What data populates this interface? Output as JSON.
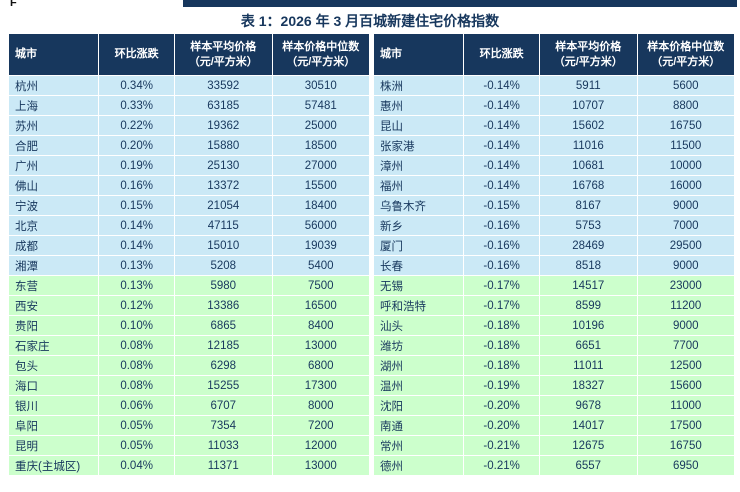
{
  "page": {
    "top_left_text": "F",
    "title": "表 1：2026 年 3 月百城新建住宅价格指数"
  },
  "colors": {
    "header_bg": "#17375D",
    "header_text": "#FFFFFF",
    "cell_text": "#17375D",
    "title_text": "#17375D",
    "top_bar": "#17375D",
    "band_blue": "#CBE9F6",
    "band_green": "#CCFFCC"
  },
  "chart_data": {
    "type": "table",
    "title": "表 1：2026 年 3 月百城新建住宅价格指数",
    "headers": [
      {
        "label": "城市",
        "unit": ""
      },
      {
        "label": "环比涨跌",
        "unit": ""
      },
      {
        "label": "样本平均价格",
        "unit": "（元/平方米）"
      },
      {
        "label": "样本价格中位数",
        "unit": "（元/平方米）"
      }
    ],
    "band_colors": {
      "blue": "#CBE9F6",
      "green": "#CCFFCC"
    },
    "left_rows": [
      {
        "city": "杭州",
        "change": "0.34%",
        "avg": "33592",
        "median": "30510",
        "band": "blue"
      },
      {
        "city": "上海",
        "change": "0.33%",
        "avg": "63185",
        "median": "57481",
        "band": "blue"
      },
      {
        "city": "苏州",
        "change": "0.22%",
        "avg": "19362",
        "median": "25000",
        "band": "blue"
      },
      {
        "city": "合肥",
        "change": "0.20%",
        "avg": "15880",
        "median": "18500",
        "band": "blue"
      },
      {
        "city": "广州",
        "change": "0.19%",
        "avg": "25130",
        "median": "27000",
        "band": "blue"
      },
      {
        "city": "佛山",
        "change": "0.16%",
        "avg": "13372",
        "median": "15500",
        "band": "blue"
      },
      {
        "city": "宁波",
        "change": "0.15%",
        "avg": "21054",
        "median": "18400",
        "band": "blue"
      },
      {
        "city": "北京",
        "change": "0.14%",
        "avg": "47115",
        "median": "56000",
        "band": "blue"
      },
      {
        "city": "成都",
        "change": "0.14%",
        "avg": "15010",
        "median": "19039",
        "band": "blue"
      },
      {
        "city": "湘潭",
        "change": "0.13%",
        "avg": "5208",
        "median": "5400",
        "band": "blue"
      },
      {
        "city": "东营",
        "change": "0.13%",
        "avg": "5980",
        "median": "7500",
        "band": "green"
      },
      {
        "city": "西安",
        "change": "0.12%",
        "avg": "13386",
        "median": "16500",
        "band": "green"
      },
      {
        "city": "贵阳",
        "change": "0.10%",
        "avg": "6865",
        "median": "8400",
        "band": "green"
      },
      {
        "city": "石家庄",
        "change": "0.08%",
        "avg": "12185",
        "median": "13000",
        "band": "green"
      },
      {
        "city": "包头",
        "change": "0.08%",
        "avg": "6298",
        "median": "6800",
        "band": "green"
      },
      {
        "city": "海口",
        "change": "0.08%",
        "avg": "15255",
        "median": "17300",
        "band": "green"
      },
      {
        "city": "银川",
        "change": "0.06%",
        "avg": "6707",
        "median": "8000",
        "band": "green"
      },
      {
        "city": "阜阳",
        "change": "0.05%",
        "avg": "7354",
        "median": "7200",
        "band": "green"
      },
      {
        "city": "昆明",
        "change": "0.05%",
        "avg": "11033",
        "median": "12000",
        "band": "green"
      },
      {
        "city": "重庆(主城区)",
        "change": "0.04%",
        "avg": "11371",
        "median": "13000",
        "band": "green"
      }
    ],
    "right_rows": [
      {
        "city": "株洲",
        "change": "-0.14%",
        "avg": "5911",
        "median": "5600",
        "band": "blue"
      },
      {
        "city": "惠州",
        "change": "-0.14%",
        "avg": "10707",
        "median": "8800",
        "band": "blue"
      },
      {
        "city": "昆山",
        "change": "-0.14%",
        "avg": "15602",
        "median": "16750",
        "band": "blue"
      },
      {
        "city": "张家港",
        "change": "-0.14%",
        "avg": "11016",
        "median": "11500",
        "band": "blue"
      },
      {
        "city": "漳州",
        "change": "-0.14%",
        "avg": "10681",
        "median": "10000",
        "band": "blue"
      },
      {
        "city": "福州",
        "change": "-0.14%",
        "avg": "16768",
        "median": "16000",
        "band": "blue"
      },
      {
        "city": "乌鲁木齐",
        "change": "-0.15%",
        "avg": "8167",
        "median": "9000",
        "band": "blue"
      },
      {
        "city": "新乡",
        "change": "-0.16%",
        "avg": "5753",
        "median": "7000",
        "band": "blue"
      },
      {
        "city": "厦门",
        "change": "-0.16%",
        "avg": "28469",
        "median": "29500",
        "band": "blue"
      },
      {
        "city": "长春",
        "change": "-0.16%",
        "avg": "8518",
        "median": "9000",
        "band": "blue"
      },
      {
        "city": "无锡",
        "change": "-0.17%",
        "avg": "14517",
        "median": "23000",
        "band": "green"
      },
      {
        "city": "呼和浩特",
        "change": "-0.17%",
        "avg": "8599",
        "median": "11200",
        "band": "green"
      },
      {
        "city": "汕头",
        "change": "-0.18%",
        "avg": "10196",
        "median": "9000",
        "band": "green"
      },
      {
        "city": "潍坊",
        "change": "-0.18%",
        "avg": "6651",
        "median": "7700",
        "band": "green"
      },
      {
        "city": "湖州",
        "change": "-0.18%",
        "avg": "11011",
        "median": "12500",
        "band": "green"
      },
      {
        "city": "温州",
        "change": "-0.19%",
        "avg": "18327",
        "median": "15600",
        "band": "green"
      },
      {
        "city": "沈阳",
        "change": "-0.20%",
        "avg": "9678",
        "median": "11000",
        "band": "green"
      },
      {
        "city": "南通",
        "change": "-0.20%",
        "avg": "14017",
        "median": "17500",
        "band": "green"
      },
      {
        "city": "常州",
        "change": "-0.21%",
        "avg": "12675",
        "median": "16750",
        "band": "green"
      },
      {
        "city": "德州",
        "change": "-0.21%",
        "avg": "6557",
        "median": "6950",
        "band": "green"
      }
    ]
  }
}
